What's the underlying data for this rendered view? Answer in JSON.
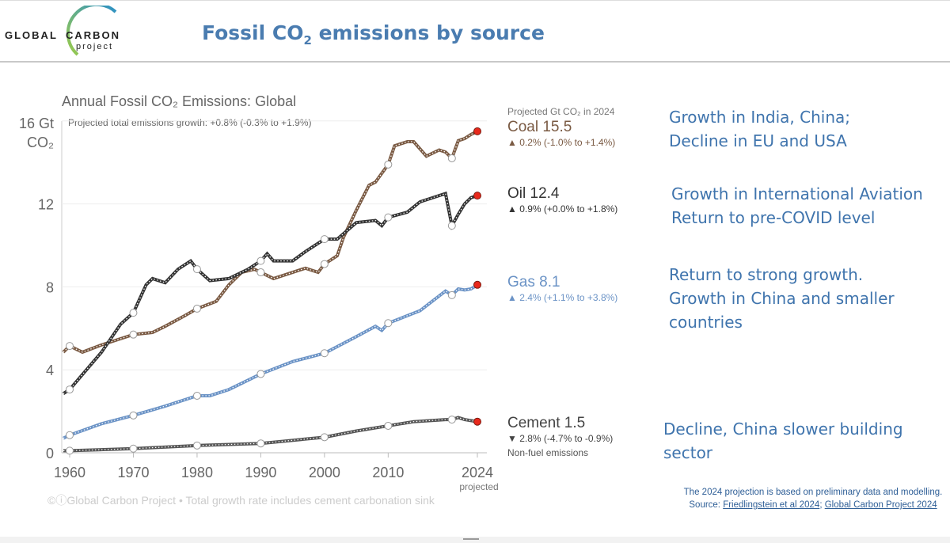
{
  "header": {
    "logo_global": "GLOBAL",
    "logo_carbon": "CARBON",
    "logo_project": "project",
    "title_pre": "Fossil CO",
    "title_sub": "2",
    "title_post": " emissions by source"
  },
  "annotations": [
    {
      "lines": [
        "Growth in India, China;",
        " Decline in EU and USA"
      ]
    },
    {
      "lines": [
        "Growth in International Aviation",
        "Return to pre-COVID level"
      ]
    },
    {
      "lines": [
        "Return to strong growth.",
        "Growth in China and smaller",
        "countries"
      ]
    },
    {
      "lines": [
        "Decline, China slower building",
        "sector"
      ]
    }
  ],
  "source": {
    "text": "The 2024 projection is based on preliminary data and modelling. Source: ",
    "link1": "Friedlingstein et al 2024",
    "sep": "; ",
    "link2": "Global Carbon Project 2024"
  },
  "chart_data": {
    "type": "line",
    "title": "Annual Fossil CO₂ Emissions: Global",
    "subtitle": "Projected total emissions growth: +0.8% (-0.3% to +1.9%)",
    "ylabel": "16 Gt CO₂",
    "ylabel_top": "16 Gt",
    "ylabel_unit": "CO₂",
    "ylim": [
      0,
      16
    ],
    "xlim": [
      1959,
      2024
    ],
    "yticks": [
      "0",
      "4",
      "8",
      "12"
    ],
    "ytick_values": [
      0,
      4,
      8,
      12
    ],
    "xticks": [
      "1960",
      "1970",
      "1980",
      "1990",
      "2000",
      "2010",
      "2024"
    ],
    "xtick_values": [
      1960,
      1970,
      1980,
      1990,
      2000,
      2010,
      2024
    ],
    "x_projected_label": "projected",
    "legend_header": "Projected Gt CO₂ in 2024",
    "footer": "©ⓘGlobal Carbon Project  •  Total growth rate includes cement carbonation sink",
    "series": [
      {
        "name": "Coal",
        "value_label": "Coal 15.5",
        "growth": "▲ 0.2% (-1.0% to +1.4%)",
        "color": "#7a5a43",
        "x": [
          1959,
          1960,
          1962,
          1965,
          1970,
          1973,
          1975,
          1978,
          1980,
          1983,
          1985,
          1987,
          1989,
          1990,
          1992,
          1995,
          1997,
          1999,
          2000,
          2002,
          2003,
          2005,
          2007,
          2008,
          2010,
          2011,
          2013,
          2014,
          2016,
          2018,
          2019,
          2020,
          2021,
          2022,
          2023,
          2024
        ],
        "y": [
          4.85,
          5.15,
          4.85,
          5.2,
          5.7,
          5.8,
          6.1,
          6.6,
          6.95,
          7.3,
          8.1,
          8.7,
          8.85,
          8.7,
          8.4,
          8.7,
          8.9,
          8.7,
          9.1,
          9.5,
          10.4,
          11.7,
          12.9,
          13.05,
          13.9,
          14.8,
          15.0,
          15.0,
          14.3,
          14.6,
          14.5,
          14.2,
          15.05,
          15.15,
          15.35,
          15.5
        ]
      },
      {
        "name": "Oil",
        "value_label": "Oil 12.4",
        "growth": "▲ 0.9% (+0.0% to +1.8%)",
        "color": "#333333",
        "x": [
          1959,
          1960,
          1965,
          1968,
          1970,
          1972,
          1973,
          1975,
          1977,
          1979,
          1980,
          1982,
          1985,
          1988,
          1990,
          1991,
          1992,
          1995,
          1997,
          2000,
          2002,
          2005,
          2008,
          2009,
          2010,
          2013,
          2015,
          2019,
          2020,
          2021,
          2022,
          2023,
          2024
        ],
        "y": [
          2.85,
          3.05,
          4.85,
          6.2,
          6.75,
          8.1,
          8.4,
          8.2,
          8.85,
          9.25,
          8.85,
          8.3,
          8.4,
          8.85,
          9.25,
          9.6,
          9.25,
          9.25,
          9.7,
          10.3,
          10.3,
          11.1,
          11.2,
          10.95,
          11.35,
          11.6,
          12.1,
          12.5,
          10.95,
          11.5,
          12.0,
          12.3,
          12.4
        ]
      },
      {
        "name": "Gas",
        "value_label": "Gas 8.1",
        "growth": "▲ 2.4% (+1.1% to +3.8%)",
        "color": "#6b93c6",
        "x": [
          1959,
          1960,
          1965,
          1970,
          1975,
          1980,
          1982,
          1985,
          1990,
          1995,
          2000,
          2005,
          2008,
          2009,
          2010,
          2015,
          2019,
          2020,
          2021,
          2022,
          2023,
          2024
        ],
        "y": [
          0.7,
          0.85,
          1.4,
          1.8,
          2.25,
          2.75,
          2.75,
          3.05,
          3.8,
          4.4,
          4.8,
          5.6,
          6.1,
          5.9,
          6.25,
          6.85,
          7.8,
          7.6,
          7.9,
          7.85,
          7.9,
          8.1
        ]
      },
      {
        "name": "Cement",
        "value_label": "Cement 1.5",
        "growth": "▼ 2.8% (-4.7% to -0.9%)",
        "note": "Non-fuel emissions",
        "color": "#555555",
        "x": [
          1959,
          1960,
          1970,
          1980,
          1990,
          2000,
          2005,
          2010,
          2014,
          2019,
          2020,
          2021,
          2022,
          2023,
          2024
        ],
        "y": [
          0.1,
          0.1,
          0.2,
          0.35,
          0.45,
          0.75,
          1.05,
          1.3,
          1.5,
          1.6,
          1.6,
          1.7,
          1.6,
          1.55,
          1.5
        ]
      }
    ]
  }
}
